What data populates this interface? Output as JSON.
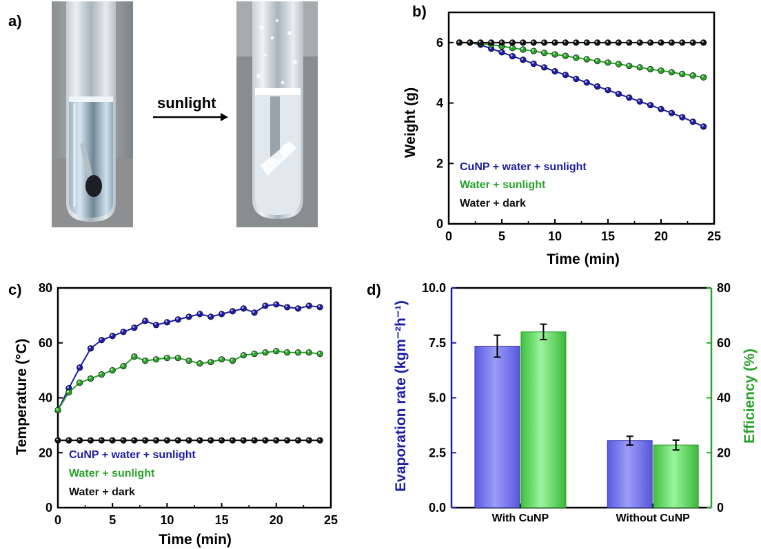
{
  "panels": {
    "a": {
      "label": "a)",
      "arrow_text": "sunlight",
      "arrow_color": "#cc1b1b"
    },
    "b": {
      "label": "b)"
    },
    "c": {
      "label": "c)"
    },
    "d": {
      "label": "d)"
    }
  },
  "colors": {
    "blue": "#1c1ca8",
    "green": "#2aa22a",
    "black": "#111111",
    "bar_blue": "#7a7af0",
    "bar_green": "#6be06b"
  },
  "chart_data": [
    {
      "id": "b",
      "type": "line",
      "xlabel": "Time (min)",
      "ylabel": "Weight (g)",
      "xlim": [
        0,
        25
      ],
      "ylim": [
        0,
        7
      ],
      "xticks": [
        "0",
        "5",
        "10",
        "15",
        "20",
        "25"
      ],
      "yticks": [
        "0",
        "2",
        "4",
        "6"
      ],
      "x": [
        1,
        2,
        3,
        4,
        5,
        6,
        7,
        8,
        9,
        10,
        11,
        12,
        13,
        14,
        15,
        16,
        17,
        18,
        19,
        20,
        21,
        22,
        23,
        24
      ],
      "series": [
        {
          "name": "CuNP + water + sunlight",
          "color_key": "blue",
          "values": [
            6.0,
            6.0,
            5.93,
            5.8,
            5.68,
            5.55,
            5.43,
            5.3,
            5.18,
            5.05,
            4.93,
            4.8,
            4.68,
            4.55,
            4.43,
            4.3,
            4.18,
            4.05,
            3.93,
            3.8,
            3.67,
            3.53,
            3.38,
            3.22
          ]
        },
        {
          "name": "Water + sunlight",
          "color_key": "green",
          "values": [
            6.0,
            6.0,
            5.97,
            5.93,
            5.88,
            5.82,
            5.77,
            5.72,
            5.66,
            5.61,
            5.56,
            5.5,
            5.45,
            5.39,
            5.34,
            5.29,
            5.23,
            5.18,
            5.12,
            5.07,
            5.02,
            4.96,
            4.91,
            4.85
          ]
        },
        {
          "name": "Water + dark",
          "color_key": "black",
          "values": [
            6,
            6,
            6,
            6,
            6,
            6,
            6,
            6,
            6,
            6,
            6,
            6,
            6,
            6,
            6,
            6,
            6,
            6,
            6,
            6,
            6,
            6,
            6,
            6
          ]
        }
      ]
    },
    {
      "id": "c",
      "type": "line",
      "xlabel": "Time (min)",
      "ylabel": "Temperature (°C)",
      "xlim": [
        0,
        25
      ],
      "ylim": [
        0,
        80
      ],
      "xticks": [
        "0",
        "5",
        "10",
        "15",
        "20",
        "25"
      ],
      "yticks": [
        "0",
        "20",
        "40",
        "60",
        "80"
      ],
      "x": [
        0,
        1,
        2,
        3,
        4,
        5,
        6,
        7,
        8,
        9,
        10,
        11,
        12,
        13,
        14,
        15,
        16,
        17,
        18,
        19,
        20,
        21,
        22,
        23,
        24
      ],
      "series": [
        {
          "name": "CuNP + water + sunlight",
          "color_key": "blue",
          "values": [
            35.5,
            43.5,
            51,
            58,
            61,
            62.5,
            64,
            65.5,
            68,
            66.5,
            67.5,
            68.5,
            69.5,
            70.5,
            69.5,
            70.5,
            71.5,
            72.5,
            71,
            73.5,
            74,
            73,
            72.5,
            73.5,
            73
          ]
        },
        {
          "name": "Water + sunlight",
          "color_key": "green",
          "values": [
            35.5,
            42,
            45.5,
            47,
            48.5,
            50,
            51.5,
            55,
            53.5,
            54,
            54.5,
            54.5,
            53.5,
            52.5,
            53,
            54,
            53.5,
            55.5,
            56,
            56.5,
            57,
            56.5,
            56.5,
            56.5,
            56
          ]
        },
        {
          "name": "Water + dark",
          "color_key": "black",
          "values": [
            24.5,
            24.5,
            24.5,
            24.5,
            24.5,
            24.5,
            24.5,
            24.5,
            24.5,
            24.5,
            24.5,
            24.5,
            24.5,
            24.5,
            24.5,
            24.5,
            24.5,
            24.5,
            24.5,
            24.5,
            24.5,
            24.5,
            24.5,
            24.5,
            24.5
          ]
        }
      ]
    },
    {
      "id": "d",
      "type": "bar",
      "categories": [
        "With CuNP",
        "Without CuNP"
      ],
      "ylabel_left": "Evaporation rate (kgm⁻²h⁻¹)",
      "ylabel_right": "Efficiency (%)",
      "ylim_left": [
        0,
        10
      ],
      "ylim_right": [
        0,
        80
      ],
      "yticks_left": [
        "0.0",
        "2.5",
        "5.0",
        "7.5",
        "10.0"
      ],
      "yticks_right": [
        "0",
        "20",
        "40",
        "60",
        "80"
      ],
      "series": [
        {
          "axis": "left",
          "color_key": "bar_blue",
          "values": [
            7.35,
            3.05
          ],
          "errors": [
            0.5,
            0.2
          ]
        },
        {
          "axis": "right",
          "color_key": "bar_green",
          "values": [
            64,
            22.8
          ],
          "errors": [
            2.8,
            1.8
          ]
        }
      ]
    }
  ]
}
